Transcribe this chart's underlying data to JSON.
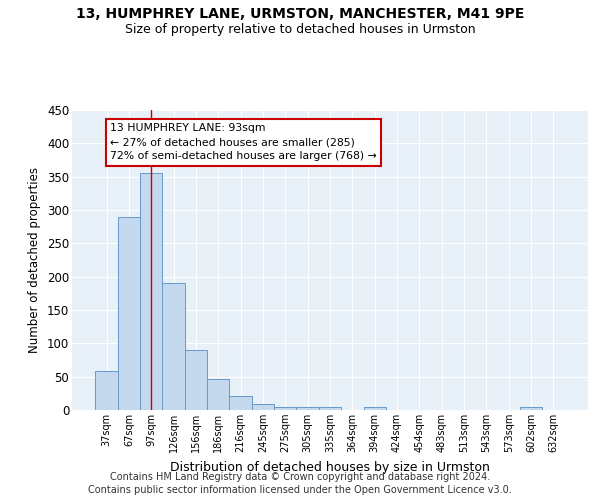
{
  "title1": "13, HUMPHREY LANE, URMSTON, MANCHESTER, M41 9PE",
  "title2": "Size of property relative to detached houses in Urmston",
  "xlabel": "Distribution of detached houses by size in Urmston",
  "ylabel": "Number of detached properties",
  "categories": [
    "37sqm",
    "67sqm",
    "97sqm",
    "126sqm",
    "156sqm",
    "186sqm",
    "216sqm",
    "245sqm",
    "275sqm",
    "305sqm",
    "335sqm",
    "364sqm",
    "394sqm",
    "424sqm",
    "454sqm",
    "483sqm",
    "513sqm",
    "543sqm",
    "573sqm",
    "602sqm",
    "632sqm"
  ],
  "values": [
    58,
    290,
    355,
    191,
    90,
    47,
    21,
    9,
    4,
    5,
    4,
    0,
    5,
    0,
    0,
    0,
    0,
    0,
    0,
    4,
    0
  ],
  "bar_color": "#c5d9ee",
  "bar_edge_color": "#6699cc",
  "bg_color": "#e8f0f8",
  "grid_color": "#ffffff",
  "vline_color": "#cc0000",
  "annotation_text": "13 HUMPHREY LANE: 93sqm\n← 27% of detached houses are smaller (285)\n72% of semi-detached houses are larger (768) →",
  "annotation_box_color": "#ffffff",
  "annotation_box_edge": "#cc0000",
  "footer": "Contains HM Land Registry data © Crown copyright and database right 2024.\nContains public sector information licensed under the Open Government Licence v3.0.",
  "ylim": [
    0,
    450
  ],
  "yticks": [
    0,
    50,
    100,
    150,
    200,
    250,
    300,
    350,
    400,
    450
  ]
}
